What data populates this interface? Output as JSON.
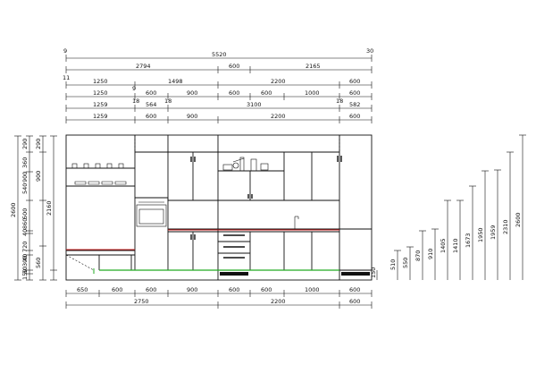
{
  "top_dims": {
    "row0": {
      "left": "9",
      "right": "30"
    },
    "row1": {
      "total": "5520"
    },
    "row2": {
      "a": "2794",
      "b": "600",
      "c": "2165"
    },
    "row3": {
      "edge": "11",
      "a": "1250",
      "b": "1498",
      "c": "2200",
      "d": "600"
    },
    "row4": {
      "gap": "9",
      "a": "1250",
      "b": "600",
      "c": "900",
      "d": "600",
      "e": "600",
      "f": "1000",
      "g": "600"
    },
    "row5": {
      "gap1": "18",
      "gap2": "18",
      "gap3": "18",
      "a": "1259",
      "b": "564",
      "c": "3100",
      "d": "582"
    },
    "row6": {
      "a": "1259",
      "b": "600",
      "c": "900",
      "d": "2200",
      "e": "600"
    }
  },
  "left_dims": {
    "outer": [
      "290",
      "360",
      "900",
      "540",
      "500",
      "860",
      "40",
      "720",
      "40",
      "300",
      "50",
      "150"
    ],
    "inner": [
      "290",
      "900",
      "2160",
      "560"
    ],
    "total": "2600"
  },
  "bottom_dims": {
    "row1": [
      "650",
      "600",
      "600",
      "900",
      "600",
      "600",
      "1000",
      "600"
    ],
    "row2": {
      "a": "2750",
      "b": "2200",
      "c": "600"
    }
  },
  "right_dims": [
    "150",
    "510",
    "550",
    "870",
    "910",
    "1405",
    "1410",
    "1673",
    "1950",
    "1959",
    "2310",
    "2600"
  ],
  "colors": {
    "line": "#111111",
    "countertop": "#cc2222",
    "plinth": "#22aa22"
  }
}
